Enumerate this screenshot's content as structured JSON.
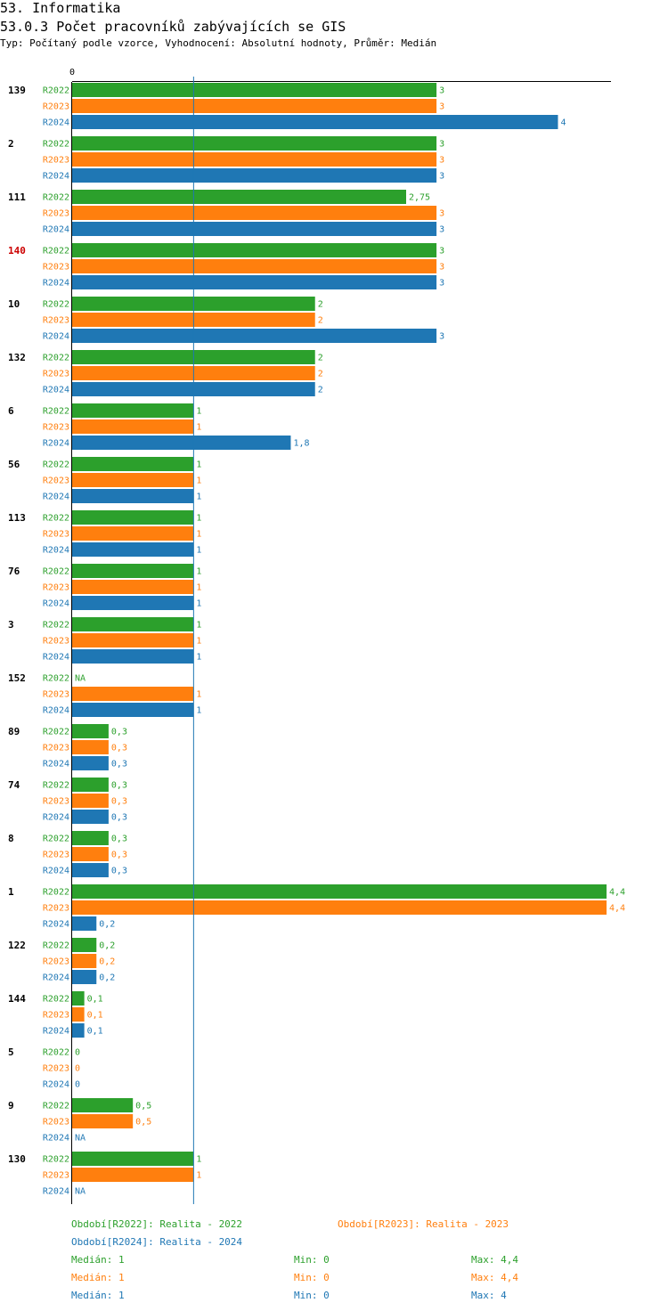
{
  "header": {
    "section": "53. Informatika",
    "title": "53.0.3 Počet pracovníků zabývajících se GIS",
    "subtitle": "Typ: Počítaný podle vzorce, Vyhodnocení: Absolutní hodnoty, Průměr: Medián"
  },
  "colors": {
    "R2022": "#2ca02c",
    "R2023": "#ff7f0e",
    "R2024": "#1f77b4",
    "highlight": "#cc0000",
    "median_line": "#1f77b4"
  },
  "chart_data": {
    "type": "bar",
    "orientation": "horizontal",
    "axis_zero_label": "0",
    "xlim": [
      0,
      4.4
    ],
    "median_line_value": 1,
    "series_names": [
      "R2022",
      "R2023",
      "R2024"
    ],
    "highlight_category": "140",
    "groups": [
      {
        "id": "139",
        "values": [
          3,
          3,
          4
        ],
        "labels": [
          "3",
          "3",
          "4"
        ]
      },
      {
        "id": "2",
        "values": [
          3,
          3,
          3
        ],
        "labels": [
          "3",
          "3",
          "3"
        ]
      },
      {
        "id": "111",
        "values": [
          2.75,
          3,
          3
        ],
        "labels": [
          "2,75",
          "3",
          "3"
        ]
      },
      {
        "id": "140",
        "values": [
          3,
          3,
          3
        ],
        "labels": [
          "3",
          "3",
          "3"
        ]
      },
      {
        "id": "10",
        "values": [
          2,
          2,
          3
        ],
        "labels": [
          "2",
          "2",
          "3"
        ]
      },
      {
        "id": "132",
        "values": [
          2,
          2,
          2
        ],
        "labels": [
          "2",
          "2",
          "2"
        ]
      },
      {
        "id": "6",
        "values": [
          1,
          1,
          1.8
        ],
        "labels": [
          "1",
          "1",
          "1,8"
        ]
      },
      {
        "id": "56",
        "values": [
          1,
          1,
          1
        ],
        "labels": [
          "1",
          "1",
          "1"
        ]
      },
      {
        "id": "113",
        "values": [
          1,
          1,
          1
        ],
        "labels": [
          "1",
          "1",
          "1"
        ]
      },
      {
        "id": "76",
        "values": [
          1,
          1,
          1
        ],
        "labels": [
          "1",
          "1",
          "1"
        ]
      },
      {
        "id": "3",
        "values": [
          1,
          1,
          1
        ],
        "labels": [
          "1",
          "1",
          "1"
        ]
      },
      {
        "id": "152",
        "values": [
          null,
          1,
          1
        ],
        "labels": [
          "NA",
          "1",
          "1"
        ]
      },
      {
        "id": "89",
        "values": [
          0.3,
          0.3,
          0.3
        ],
        "labels": [
          "0,3",
          "0,3",
          "0,3"
        ]
      },
      {
        "id": "74",
        "values": [
          0.3,
          0.3,
          0.3
        ],
        "labels": [
          "0,3",
          "0,3",
          "0,3"
        ]
      },
      {
        "id": "8",
        "values": [
          0.3,
          0.3,
          0.3
        ],
        "labels": [
          "0,3",
          "0,3",
          "0,3"
        ]
      },
      {
        "id": "1",
        "values": [
          4.4,
          4.4,
          0.2
        ],
        "labels": [
          "4,4",
          "4,4",
          "0,2"
        ]
      },
      {
        "id": "122",
        "values": [
          0.2,
          0.2,
          0.2
        ],
        "labels": [
          "0,2",
          "0,2",
          "0,2"
        ]
      },
      {
        "id": "144",
        "values": [
          0.1,
          0.1,
          0.1
        ],
        "labels": [
          "0,1",
          "0,1",
          "0,1"
        ]
      },
      {
        "id": "5",
        "values": [
          0,
          0,
          0
        ],
        "labels": [
          "0",
          "0",
          "0"
        ]
      },
      {
        "id": "9",
        "values": [
          0.5,
          0.5,
          null
        ],
        "labels": [
          "0,5",
          "0,5",
          "NA"
        ]
      },
      {
        "id": "130",
        "values": [
          1,
          1,
          null
        ],
        "labels": [
          "1",
          "1",
          "NA"
        ]
      }
    ]
  },
  "legend": {
    "r2022": "Období[R2022]: Realita - 2022",
    "r2023": "Období[R2023]: Realita - 2023",
    "r2024": "Období[R2024]: Realita - 2024"
  },
  "stats": {
    "r2022": {
      "median": "Medián: 1",
      "min": "Min: 0",
      "max": "Max: 4,4"
    },
    "r2023": {
      "median": "Medián: 1",
      "min": "Min: 0",
      "max": "Max: 4,4"
    },
    "r2024": {
      "median": "Medián: 1",
      "min": "Min: 0",
      "max": "Max: 4"
    }
  }
}
